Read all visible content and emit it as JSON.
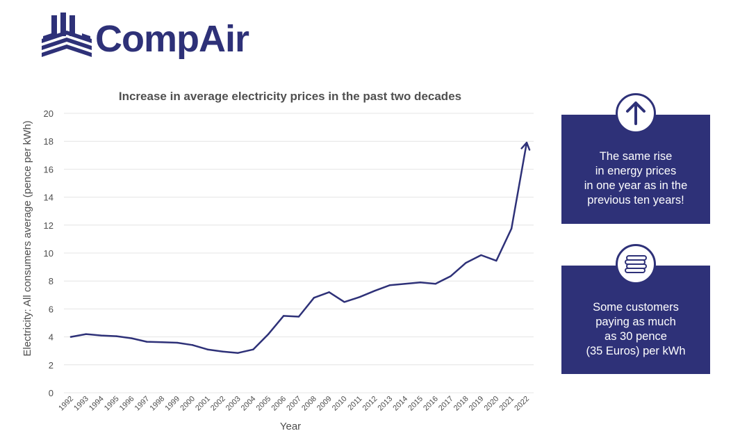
{
  "brand": {
    "name": "CompAir",
    "logo_icon": "compair-logo-mark",
    "color": "#2e3178"
  },
  "chart_data": {
    "type": "line",
    "title": "Increase in average electricity prices in the past two decades",
    "xlabel": "Year",
    "ylabel": "Electricity: All consumers average (pence per kWh)",
    "categories": [
      "1992",
      "1993",
      "1994",
      "1995",
      "1996",
      "1997",
      "1998",
      "1999",
      "2000",
      "2001",
      "2002",
      "2003",
      "2004",
      "2005",
      "2006",
      "2007",
      "2008",
      "2009",
      "2010",
      "2011",
      "2012",
      "2013",
      "2014",
      "2015",
      "2016",
      "2017",
      "2018",
      "2019",
      "2020",
      "2021",
      "2022"
    ],
    "series": [
      {
        "values": [
          4.0,
          4.2,
          4.1,
          4.05,
          3.9,
          3.65,
          3.62,
          3.58,
          3.42,
          3.1,
          2.95,
          2.85,
          3.1,
          4.2,
          5.5,
          5.45,
          6.8,
          7.2,
          6.5,
          6.85,
          7.3,
          7.7,
          7.8,
          7.9,
          7.8,
          8.35,
          9.3,
          9.85,
          9.45,
          11.75,
          17.9
        ]
      }
    ],
    "ylim": [
      0,
      20
    ],
    "yticks": [
      0,
      2,
      4,
      6,
      8,
      10,
      12,
      14,
      16,
      18,
      20
    ],
    "grid": true,
    "line_color": "#2e3178",
    "end_marker": "arrow"
  },
  "callouts": [
    {
      "icon": "arrow-up-icon",
      "text": "The same rise\nin energy prices\nin one year as in the\nprevious ten years!"
    },
    {
      "icon": "coins-icon",
      "text": "Some customers\npaying as much\nas 30 pence\n(35 Euros) per kWh"
    }
  ]
}
